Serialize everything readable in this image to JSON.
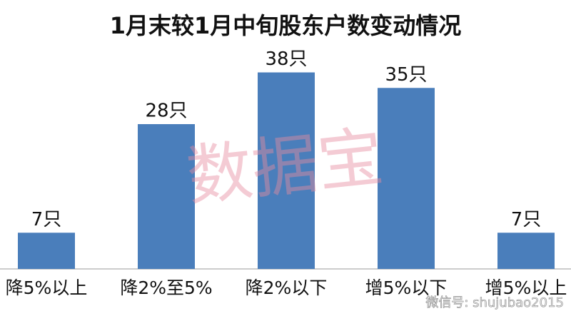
{
  "chart_data": {
    "type": "bar",
    "title": "1月末较1月中旬股东户数变动情况",
    "categories": [
      "降5%以上",
      "降2%至5%",
      "降2%以下",
      "增5%以下",
      "增5%以上"
    ],
    "values": [
      7,
      28,
      38,
      35,
      7
    ],
    "value_labels": [
      "7只",
      "28只",
      "38只",
      "35只",
      "7只"
    ],
    "color": "#4a7ebb",
    "ylim": [
      0,
      40
    ],
    "watermark": "数据宝",
    "footer": "微信号: shujubao2015"
  }
}
